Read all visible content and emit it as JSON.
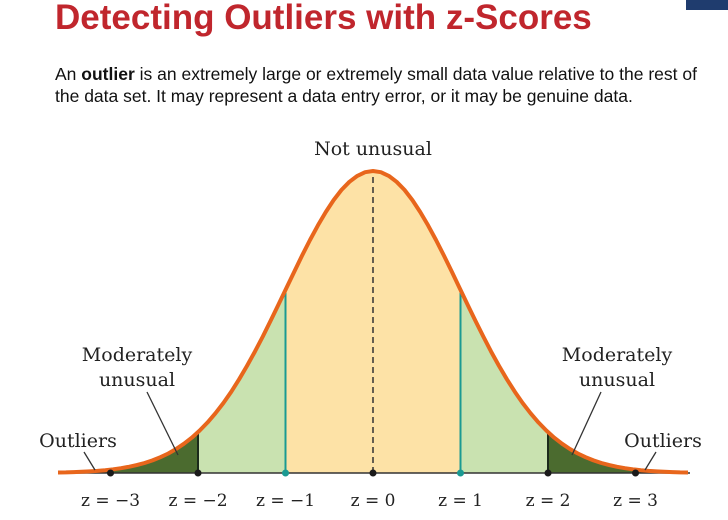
{
  "title": "Detecting Outliers with z-Scores",
  "definition": {
    "term": "outlier",
    "prefix": "An ",
    "text": " is an extremely large or extremely small data value relative to the rest of the data set. It may represent a data entry error, or it may be genuine data."
  },
  "diagram": {
    "label_center": "Not unusual",
    "label_moderate_left": [
      "Moderately",
      "unusual"
    ],
    "label_moderate_right": [
      "Moderately",
      "unusual"
    ],
    "label_outliers_left": "Outliers",
    "label_outliers_right": "Outliers",
    "z_ticks": [
      {
        "z": -3,
        "label": "z = −3"
      },
      {
        "z": -2,
        "label": "z = −2"
      },
      {
        "z": -1,
        "label": "z = −1"
      },
      {
        "z": 0,
        "label": "z = 0"
      },
      {
        "z": 1,
        "label": "z = 1"
      },
      {
        "z": 2,
        "label": "z = 2"
      },
      {
        "z": 3,
        "label": "z = 3"
      }
    ],
    "colors": {
      "curve": "#e8661c",
      "center_fill": "#fde2a6",
      "moderate_fill": "#c9e2b0",
      "outlier_fill": "#4b6b2f",
      "teal_line": "#1a9a92",
      "dark_line": "#1b2a1b",
      "title": "#c0262d"
    }
  }
}
